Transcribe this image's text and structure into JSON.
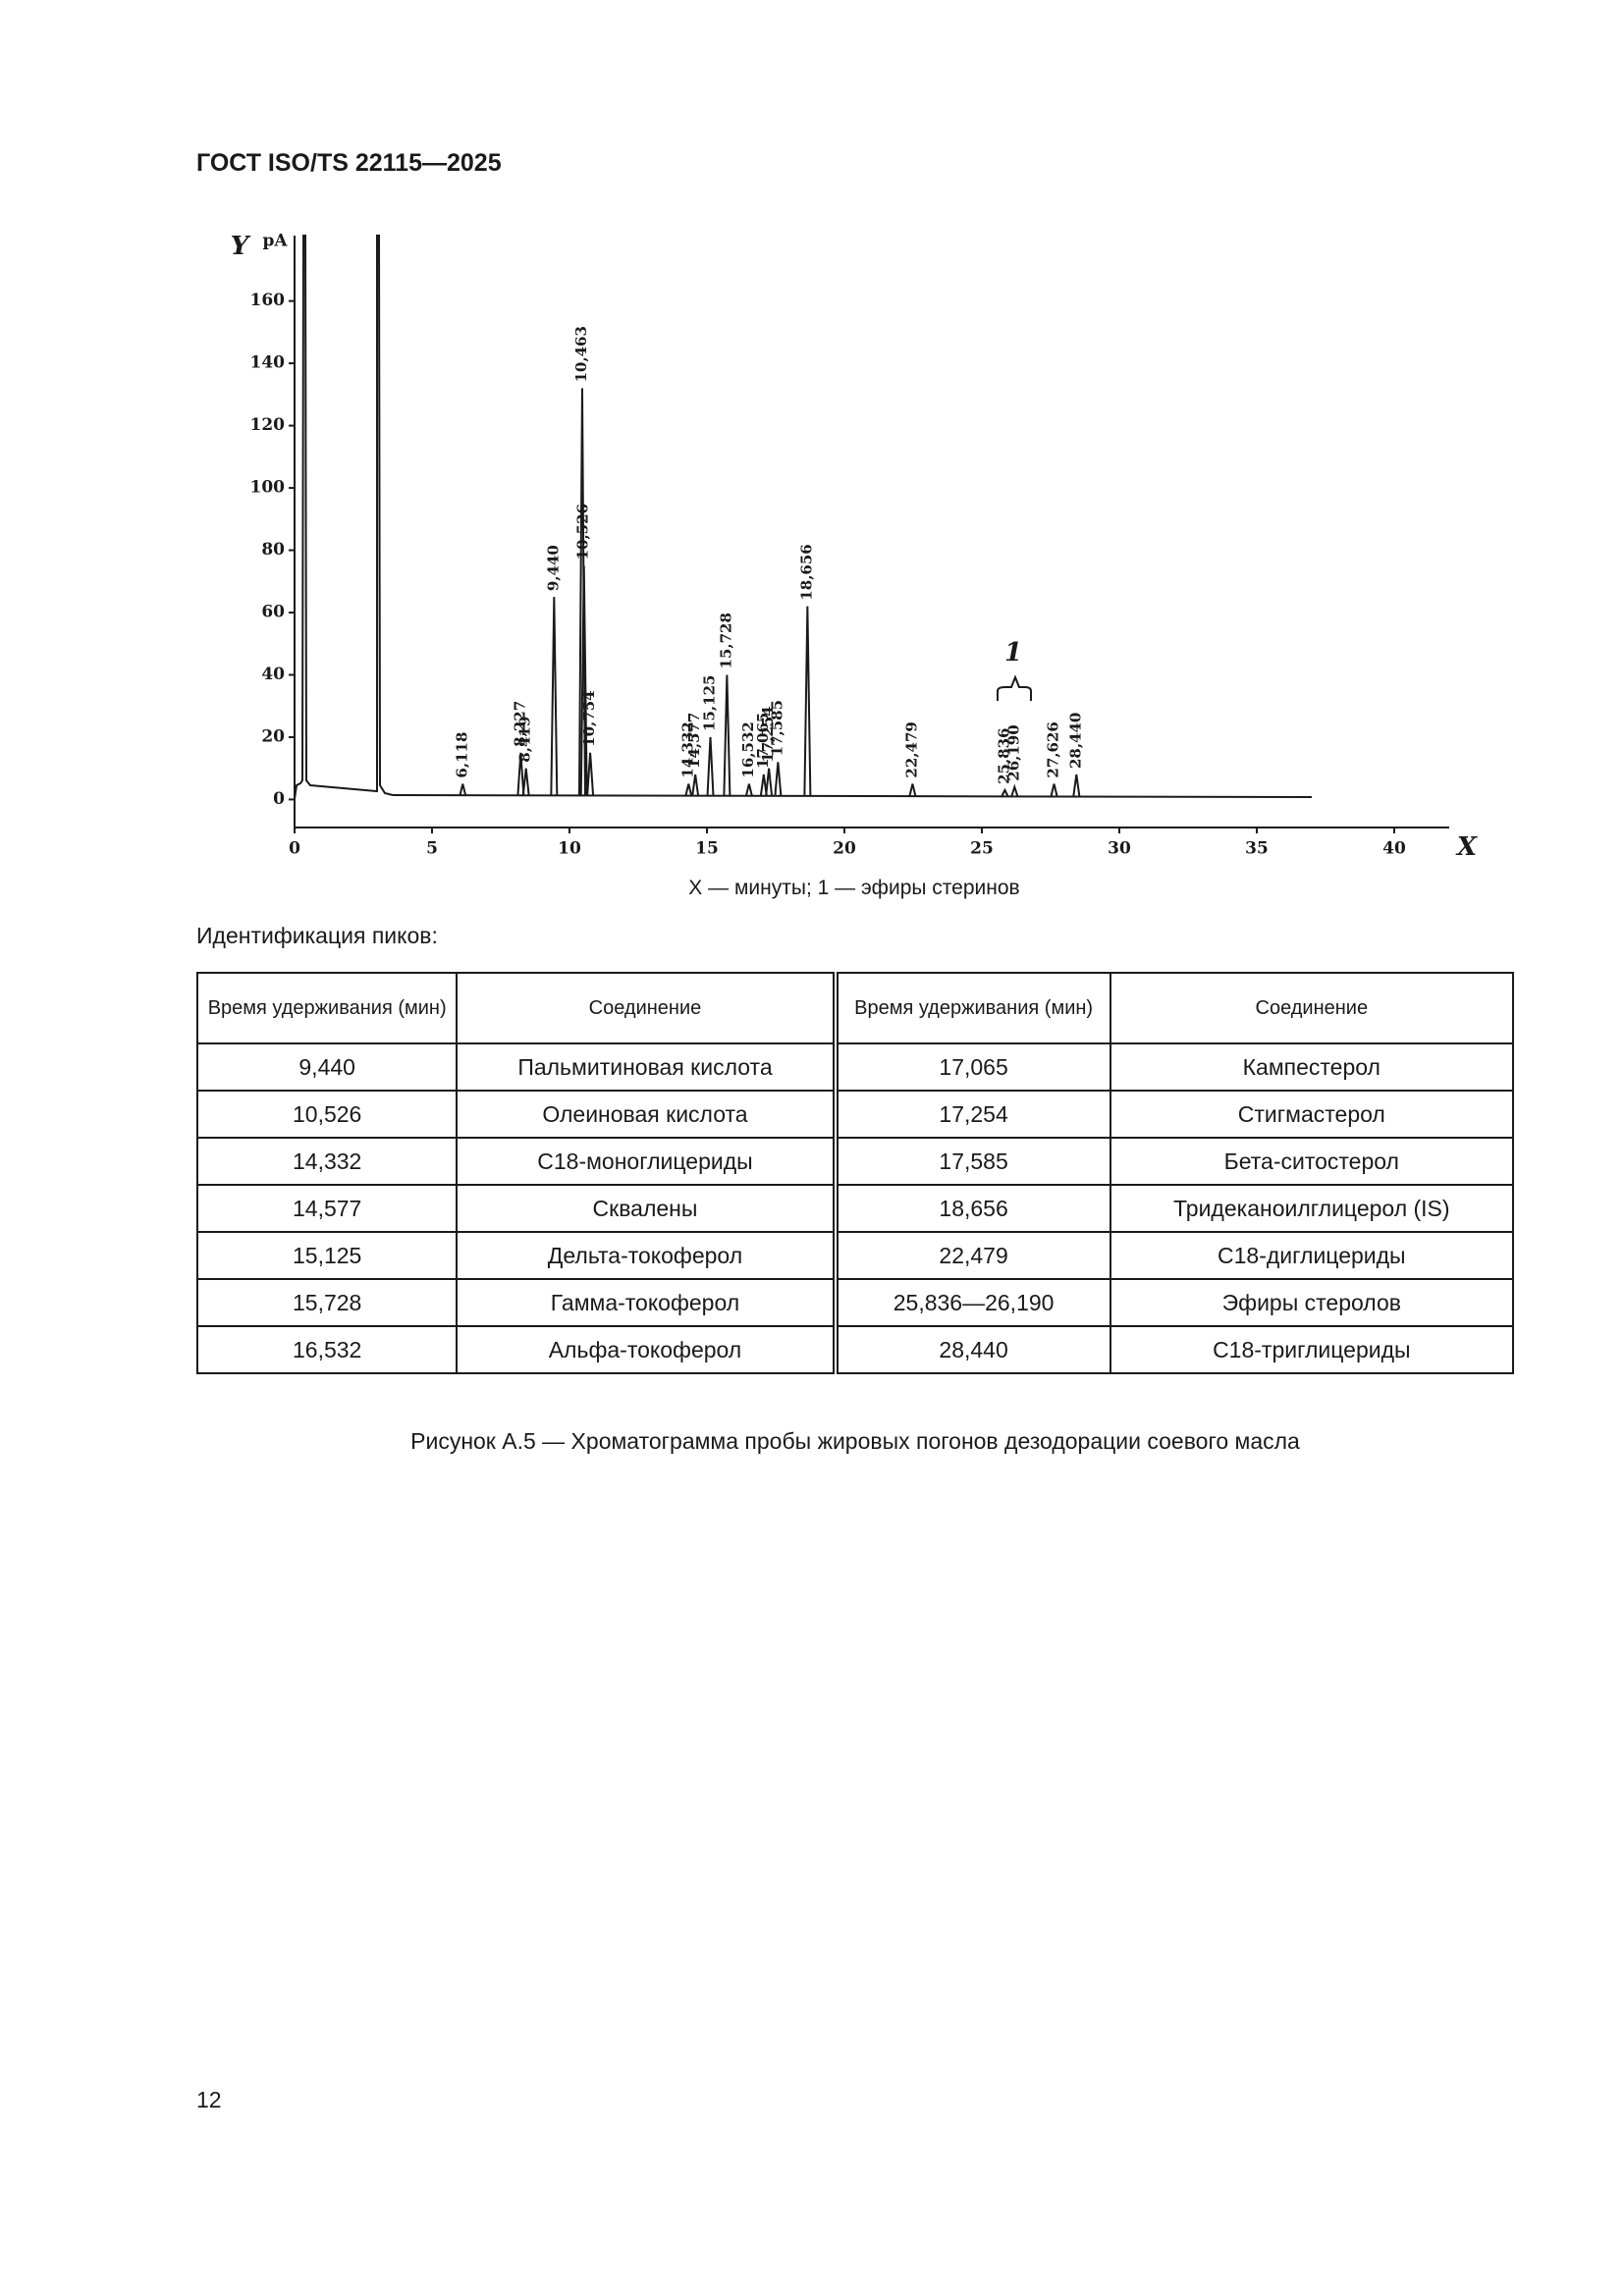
{
  "header": {
    "title": "ГОСТ ISO/TS 22115—2025"
  },
  "chart_data": {
    "type": "chromatogram",
    "y_label": "Y",
    "y_unit": "pA",
    "x_label": "X",
    "annotation": "1",
    "x": [
      6.118,
      8.227,
      8.419,
      9.44,
      10.463,
      10.526,
      10.754,
      14.332,
      14.577,
      15.125,
      15.728,
      16.532,
      17.065,
      17.254,
      17.585,
      18.656,
      22.479,
      25.836,
      26.19,
      27.626,
      28.44
    ],
    "values": [
      5,
      15,
      10,
      65,
      132,
      75,
      15,
      5,
      8,
      20,
      40,
      5,
      8,
      10,
      12,
      62,
      5,
      3,
      4,
      5,
      8
    ],
    "value_labels": [
      "6,118",
      "8,227",
      "8,419",
      "9,440",
      "10,463",
      "10,526",
      "10,754",
      "14,332",
      "14,577",
      "15,125",
      "15,728",
      "16,532",
      "17,065",
      "17,254",
      "17,585",
      "18,656",
      "22,479",
      "25,836",
      "26,190",
      "27,626",
      "28,440"
    ],
    "color": "#1a1a1a",
    "xlim": [
      0,
      42
    ],
    "ylim": [
      -9,
      181
    ],
    "xticks": [
      0,
      5,
      10,
      15,
      20,
      25,
      30,
      35,
      40
    ],
    "yticks": [
      0,
      20,
      40,
      60,
      80,
      100,
      120,
      140,
      160
    ]
  },
  "figure_note": "X — минуты; 1 — эфиры стеринов",
  "table": {
    "title": "Идентификация пиков:",
    "columns": [
      "Время удерживания (мин)",
      "Соединение",
      "Время удерживания (мин)",
      "Соединение"
    ],
    "rows": [
      [
        "9,440",
        "Пальмитиновая кислота",
        "17,065",
        "Кампестерол"
      ],
      [
        "10,526",
        "Олеиновая кислота",
        "17,254",
        "Стигмастерол"
      ],
      [
        "14,332",
        "С18-моноглицериды",
        "17,585",
        "Бета-ситостерол"
      ],
      [
        "14,577",
        "Сквалены",
        "18,656",
        "Тридеканоилглицерол (IS)"
      ],
      [
        "15,125",
        "Дельта-токоферол",
        "22,479",
        "С18-диглицериды"
      ],
      [
        "15,728",
        "Гамма-токоферол",
        "25,836—26,190",
        "Эфиры стеролов"
      ],
      [
        "16,532",
        "Альфа-токоферол",
        "28,440",
        "С18-триглицериды"
      ]
    ]
  },
  "caption": "Рисунок А.5 — Хроматограмма пробы жировых погонов дезодорации соевого масла",
  "page_number": "12"
}
